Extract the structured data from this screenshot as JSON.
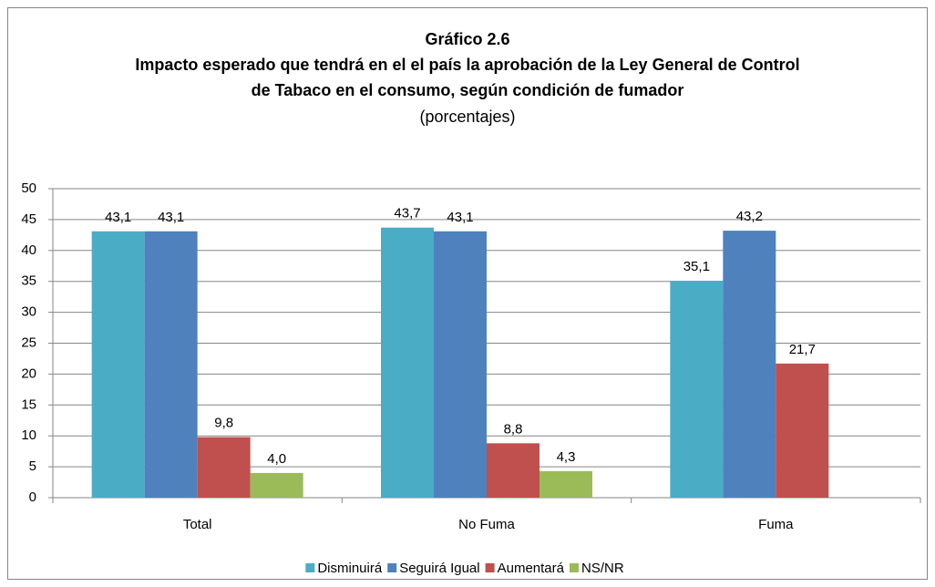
{
  "chart_data": {
    "type": "bar",
    "title": [
      "Gráfico 2.6",
      "Impacto esperado que tendrá en el el país la aprobación de la Ley General de Control",
      "de Tabaco en el consumo, según condición de fumador"
    ],
    "subtitle": "(porcentajes)",
    "categories": [
      "Total",
      "No Fuma",
      "Fuma"
    ],
    "series": [
      {
        "name": "Disminuirá",
        "color": "#4bacc6",
        "values": [
          43.1,
          43.7,
          35.1
        ],
        "value_labels": [
          "43,1",
          "43,7",
          "35,1"
        ]
      },
      {
        "name": "Seguirá Igual",
        "color": "#4f81bd",
        "values": [
          43.1,
          43.1,
          43.2
        ],
        "value_labels": [
          "43,1",
          "43,1",
          "43,2"
        ]
      },
      {
        "name": "Aumentará",
        "color": "#c0504d",
        "values": [
          9.8,
          8.8,
          21.7
        ],
        "value_labels": [
          "9,8",
          "8,8",
          "21,7"
        ]
      },
      {
        "name": "NS/NR",
        "color": "#9bbb59",
        "values": [
          4.0,
          4.3,
          null
        ],
        "value_labels": [
          "4,0",
          "4,3",
          null
        ]
      }
    ],
    "ylim": [
      0,
      50
    ],
    "yticks": [
      0,
      5,
      10,
      15,
      20,
      25,
      30,
      35,
      40,
      45,
      50
    ],
    "grid": true,
    "legend": "bottom"
  }
}
